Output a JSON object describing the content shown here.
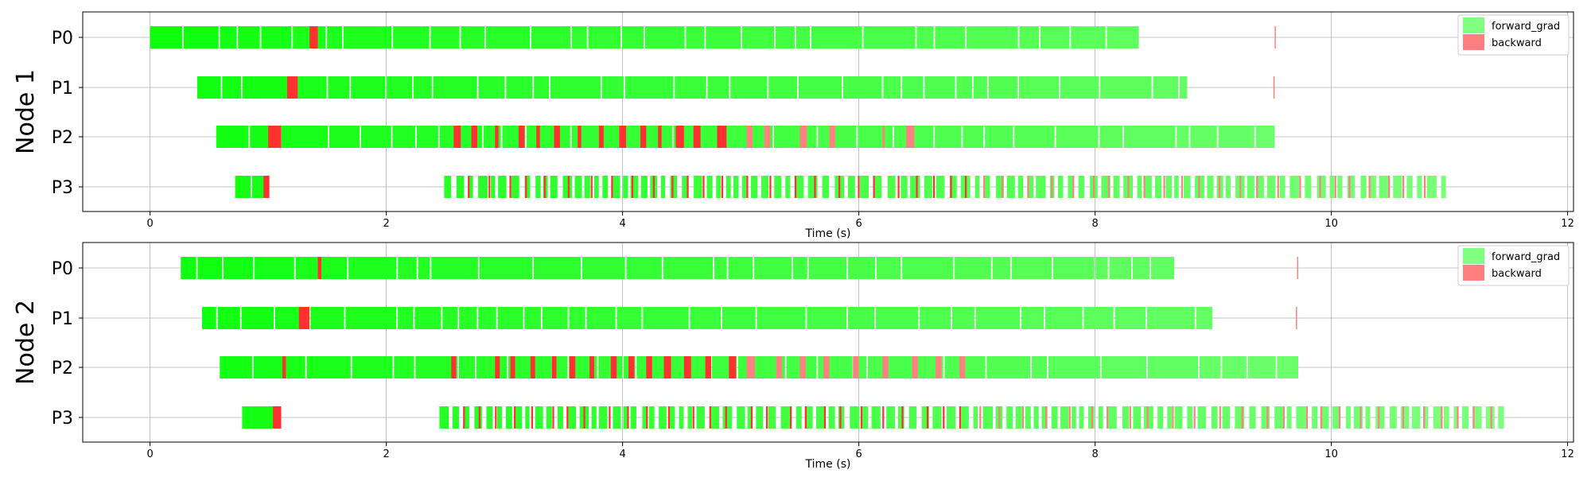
{
  "chart_data": [
    {
      "type": "timeline",
      "ylabel": "Node 1",
      "xlabel": "Time (s)",
      "xlim": [
        -0.57,
        12.05
      ],
      "xticks": [
        0,
        2,
        4,
        6,
        8,
        10,
        12
      ],
      "categories": [
        "P0",
        "P1",
        "P2",
        "P3"
      ],
      "grid": true,
      "legend_position": "top-right",
      "legend": [
        "forward_grad",
        "backward"
      ],
      "rows": [
        {
          "name": "P0",
          "forward": [
            [
              0.0,
              8.37
            ]
          ],
          "backward": [
            [
              1.35,
              1.42
            ],
            [
              9.52,
              9.53
            ]
          ],
          "gaps": [
            0.41,
            0.42,
            1.08,
            1.12,
            2.07,
            2.15
          ]
        },
        {
          "name": "P1",
          "forward": [
            [
              0.4,
              8.78
            ]
          ],
          "backward": [
            [
              1.16,
              1.25
            ],
            [
              9.51,
              9.52
            ]
          ],
          "gaps": [
            1.97,
            2.0
          ]
        },
        {
          "name": "P2",
          "forward": [
            [
              0.56,
              9.52
            ]
          ],
          "backward": [
            [
              1.0,
              1.11
            ],
            [
              2.57,
              2.63
            ],
            [
              2.72,
              2.77
            ],
            [
              2.92,
              2.95
            ],
            [
              3.12,
              3.17
            ],
            [
              3.27,
              3.3
            ],
            [
              3.42,
              3.47
            ],
            [
              3.62,
              3.65
            ],
            [
              3.8,
              3.84
            ],
            [
              3.97,
              4.03
            ],
            [
              4.15,
              4.2
            ],
            [
              4.3,
              4.33
            ],
            [
              4.45,
              4.52
            ],
            [
              4.6,
              4.66
            ],
            [
              4.8,
              4.88
            ],
            [
              5.05,
              5.1
            ],
            [
              5.2,
              5.25
            ],
            [
              5.5,
              5.56
            ],
            [
              5.75,
              5.8
            ],
            [
              6.2,
              6.22
            ],
            [
              6.4,
              6.47
            ]
          ]
        },
        {
          "name": "P3",
          "forward": [
            [
              0.72,
              0.97
            ],
            [
              2.49,
              10.97
            ]
          ],
          "backward": [
            [
              0.96,
              1.01
            ]
          ],
          "dense_start": 2.49
        }
      ]
    },
    {
      "type": "timeline",
      "ylabel": "Node 2",
      "xlabel": "Time (s)",
      "xlim": [
        -0.57,
        12.05
      ],
      "xticks": [
        0,
        2,
        4,
        6,
        8,
        10,
        12
      ],
      "categories": [
        "P0",
        "P1",
        "P2",
        "P3"
      ],
      "grid": true,
      "legend_position": "top-right",
      "legend": [
        "forward_grad",
        "backward"
      ],
      "rows": [
        {
          "name": "P0",
          "forward": [
            [
              0.26,
              8.67
            ]
          ],
          "backward": [
            [
              1.42,
              1.45
            ],
            [
              9.71,
              9.72
            ]
          ]
        },
        {
          "name": "P1",
          "forward": [
            [
              0.44,
              9.0
            ]
          ],
          "backward": [
            [
              1.26,
              1.35
            ],
            [
              9.7,
              9.71
            ]
          ]
        },
        {
          "name": "P2",
          "forward": [
            [
              0.59,
              9.72
            ]
          ],
          "backward": [
            [
              1.12,
              1.15
            ],
            [
              2.55,
              2.59
            ],
            [
              2.92,
              2.96
            ],
            [
              3.05,
              3.09
            ],
            [
              3.22,
              3.26
            ],
            [
              3.4,
              3.44
            ],
            [
              3.55,
              3.6
            ],
            [
              3.72,
              3.76
            ],
            [
              3.9,
              3.95
            ],
            [
              4.05,
              4.1
            ],
            [
              4.2,
              4.25
            ],
            [
              4.35,
              4.41
            ],
            [
              4.52,
              4.58
            ],
            [
              4.7,
              4.75
            ],
            [
              4.9,
              4.96
            ],
            [
              5.05,
              5.12
            ],
            [
              5.3,
              5.35
            ],
            [
              5.5,
              5.55
            ],
            [
              5.7,
              5.75
            ],
            [
              5.95,
              6.0
            ],
            [
              6.2,
              6.25
            ],
            [
              6.45,
              6.5
            ],
            [
              6.65,
              6.7
            ],
            [
              6.85,
              6.9
            ]
          ]
        },
        {
          "name": "P3",
          "forward": [
            [
              0.78,
              1.08
            ],
            [
              2.45,
              11.48
            ]
          ],
          "backward": [
            [
              1.04,
              1.11
            ]
          ],
          "dense_start": 2.45
        }
      ]
    }
  ],
  "colors": {
    "forward_start": "#0dff0d",
    "forward_end": "#80ff80",
    "backward": "#ff3030",
    "backward_light": "#ff8080",
    "grid": "#b0b0b0"
  }
}
